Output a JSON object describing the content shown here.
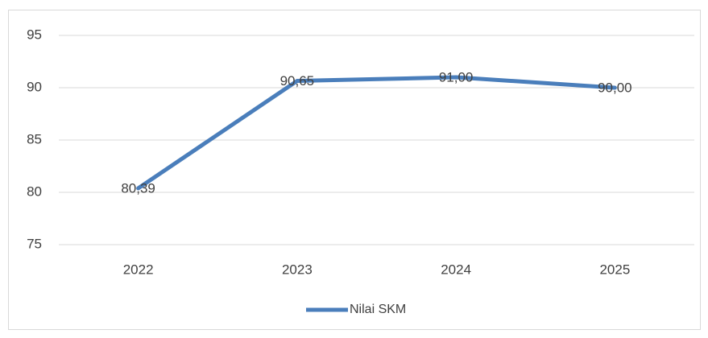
{
  "chart_data": {
    "type": "line",
    "categories": [
      "2022",
      "2023",
      "2024",
      "2025"
    ],
    "series": [
      {
        "name": "Nilai SKM",
        "color": "#4a7ebb",
        "values": [
          80.39,
          90.65,
          91.0,
          90.0
        ],
        "value_labels": [
          "80,39",
          "90,65",
          "91,00",
          "90,00"
        ]
      }
    ],
    "ylim": [
      75,
      95
    ],
    "yticks": [
      75,
      80,
      85,
      90,
      95
    ],
    "grid": true,
    "legend": "bottom"
  }
}
